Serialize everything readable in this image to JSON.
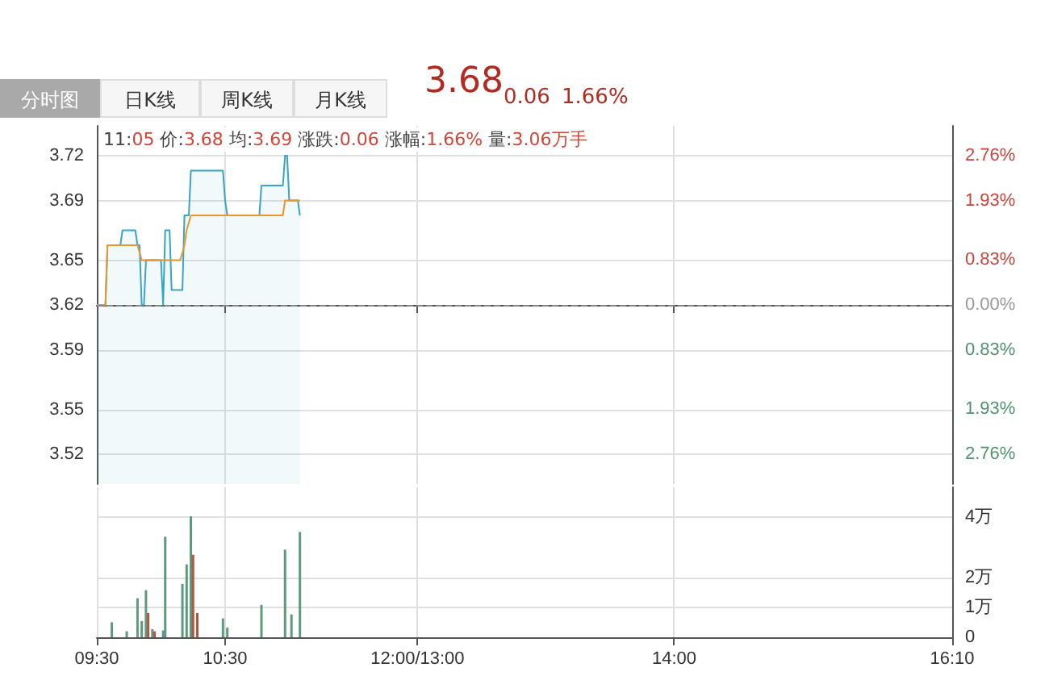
{
  "chart_data": [
    {
      "type": "line",
      "annotations": [
        "分时图",
        "日K线",
        "周K线",
        "月K线",
        "3.68",
        "0.06",
        "1.66%",
        "11:05 价:3.68 均:3.69 涨跌:0.06 涨幅:1.66% 量:3.06万手"
      ],
      "xlim": [
        9.5,
        16.167
      ],
      "xticks": [
        {
          "value": 9.5,
          "label": null
        },
        {
          "value": 10.5,
          "label": null
        },
        {
          "value": 12,
          "label": null
        },
        {
          "value": 14,
          "label": null
        },
        {
          "value": 16.167,
          "label": null
        }
      ],
      "ylim": [
        3.5,
        3.74
      ],
      "yticks": [
        3.52,
        3.55,
        3.59,
        3.62,
        3.65,
        3.69,
        3.72
      ],
      "y2lim": [
        -3.31,
        3.31
      ],
      "y2ticks": [
        {
          "value": -2.76,
          "label": "2.76%"
        },
        {
          "value": -1.93,
          "label": "1.93%"
        },
        {
          "value": -0.83,
          "label": "0.83%"
        },
        {
          "value": 0,
          "label": "0.00%"
        },
        {
          "value": 0.83,
          "label": "0.83%"
        },
        {
          "value": 1.93,
          "label": "1.93%"
        },
        {
          "value": 2.76,
          "label": "2.76%"
        }
      ],
      "tick_labels": "y",
      "grid": true,
      "marker": "none",
      "ref_lines": [
        {
          "axis": "y",
          "value": 3.62,
          "color": "#888888",
          "line_style": "dashed"
        }
      ],
      "series": [
        {
          "type": "area",
          "color": "#3ba3c3",
          "x": [
            9.5,
            9.567,
            9.583,
            9.683,
            9.7,
            9.8,
            9.817,
            9.833,
            9.85,
            9.867,
            9.883,
            10,
            10.017,
            10.033,
            10.067,
            10.083,
            10.167,
            10.183,
            10.217,
            10.233,
            10.483,
            10.5,
            10.517,
            10.767,
            10.783,
            10.95,
            10.967,
            10.983,
            11,
            11.067,
            11.083
          ],
          "values": [
            3.62,
            3.62,
            3.66,
            3.66,
            3.67,
            3.67,
            3.66,
            3.66,
            3.62,
            3.62,
            3.65,
            3.65,
            3.62,
            3.67,
            3.67,
            3.63,
            3.63,
            3.68,
            3.68,
            3.71,
            3.71,
            3.69,
            3.68,
            3.68,
            3.7,
            3.7,
            3.72,
            3.72,
            3.69,
            3.69,
            3.68
          ]
        },
        {
          "type": "line",
          "color": "#e8962e",
          "x": [
            9.5,
            9.567,
            9.583,
            9.817,
            9.85,
            10.15,
            10.183,
            10.2,
            10.233,
            10.95,
            10.967,
            11.083
          ],
          "values": [
            3.62,
            3.62,
            3.66,
            3.66,
            3.65,
            3.65,
            3.66,
            3.67,
            3.68,
            3.68,
            3.69,
            3.69
          ]
        }
      ]
    },
    {
      "type": "bar",
      "xlim": [
        9.5,
        16.167
      ],
      "xticks": [
        {
          "value": 9.5,
          "label": "09:30"
        },
        {
          "value": 10.5,
          "label": "10:30"
        },
        {
          "value": 12,
          "label": "12:00/13:00"
        },
        {
          "value": 14,
          "label": "14:00"
        },
        {
          "value": 16.167,
          "label": "16:10"
        }
      ],
      "ylim": [
        0,
        5
      ],
      "yticks": [
        0,
        {
          "value": 1,
          "label": "1万"
        },
        {
          "value": 2,
          "label": "2万"
        },
        {
          "value": 4,
          "label": "4万"
        }
      ],
      "grid": true,
      "x": [
        9.617,
        9.733,
        9.817,
        9.85,
        9.883,
        9.9,
        9.933,
        9.95,
        10.017,
        10.033,
        10.167,
        10.2,
        10.233,
        10.25,
        10.283,
        10.483,
        10.517,
        10.783,
        10.967,
        11.017,
        11.083
      ],
      "values": [
        0.5,
        0.2,
        1.3,
        0.54,
        1.57,
        0.81,
        0.27,
        0.2,
        0.23,
        3.35,
        1.78,
        2.43,
        4.03,
        2.75,
        0.81,
        0.63,
        0.32,
        1.08,
        2.92,
        0.76,
        3.51
      ],
      "colors": [
        "#5b9a7d",
        "#5b9a7d",
        "#5b9a7d",
        "#5b9a7d",
        "#5b9a7d",
        "#b5553c",
        "#5b9a7d",
        "#b5553c",
        "#5b9a7d",
        "#5b9a7d",
        "#5b9a7d",
        "#5b9a7d",
        "#5b9a7d",
        "#b5553c",
        "#b5553c",
        "#5b9a7d",
        "#5b9a7d",
        "#5b9a7d",
        "#5b9a7d",
        "#5b9a7d",
        "#5b9a7d"
      ]
    }
  ]
}
